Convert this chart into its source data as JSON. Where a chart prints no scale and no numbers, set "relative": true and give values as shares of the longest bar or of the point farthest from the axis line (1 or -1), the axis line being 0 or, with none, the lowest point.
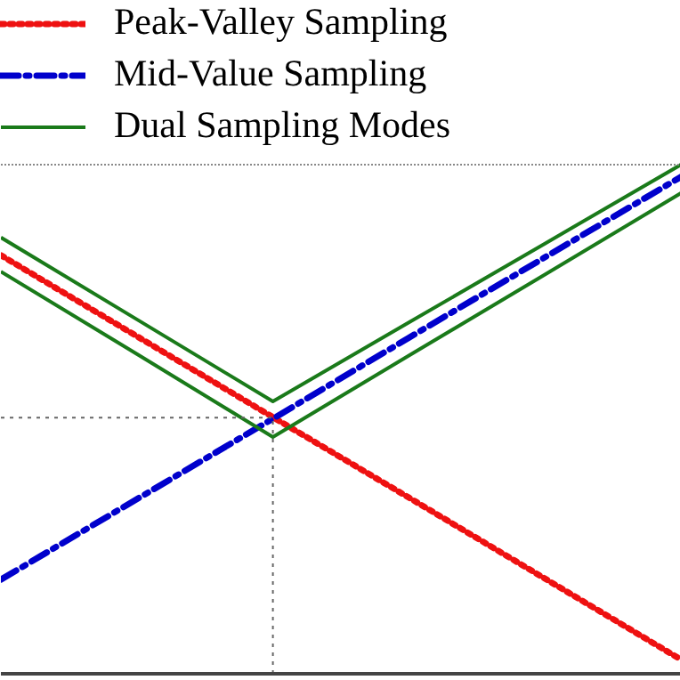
{
  "chart_data": {
    "type": "line",
    "relative": true,
    "categories": [
      null,
      null,
      null,
      null,
      null,
      null
    ],
    "tick_labels": false,
    "grid": false,
    "legend": "top",
    "marker": "none",
    "series": [
      {
        "name": "Peak-Valley Sampling",
        "color": "#ee1111",
        "line_style": "dotted",
        "values": [
          0.822,
          0.663,
          0.504,
          0.346,
          0.187,
          0.028
        ]
      },
      {
        "name": "Mid-Value Sampling",
        "color": "#0000cc",
        "line_style": "dashdot",
        "values": [
          0.185,
          0.343,
          0.501,
          0.66,
          0.818,
          0.976
        ]
      },
      {
        "name": "Dual Sampling Modes",
        "color": "#1a7a1a",
        "line_style": "solid",
        "values": [
          0.857,
          0.696,
          0.535,
          0.69,
          0.845,
          1.0
        ]
      },
      {
        "color": "#1a7a1a",
        "line_style": "solid",
        "values": [
          0.79,
          0.628,
          0.465,
          0.625,
          0.784,
          0.944
        ]
      }
    ],
    "ref_lines": [
      {
        "axis": "y",
        "value": 0.503,
        "color": "#666666",
        "line_style": "dotted"
      }
    ]
  }
}
